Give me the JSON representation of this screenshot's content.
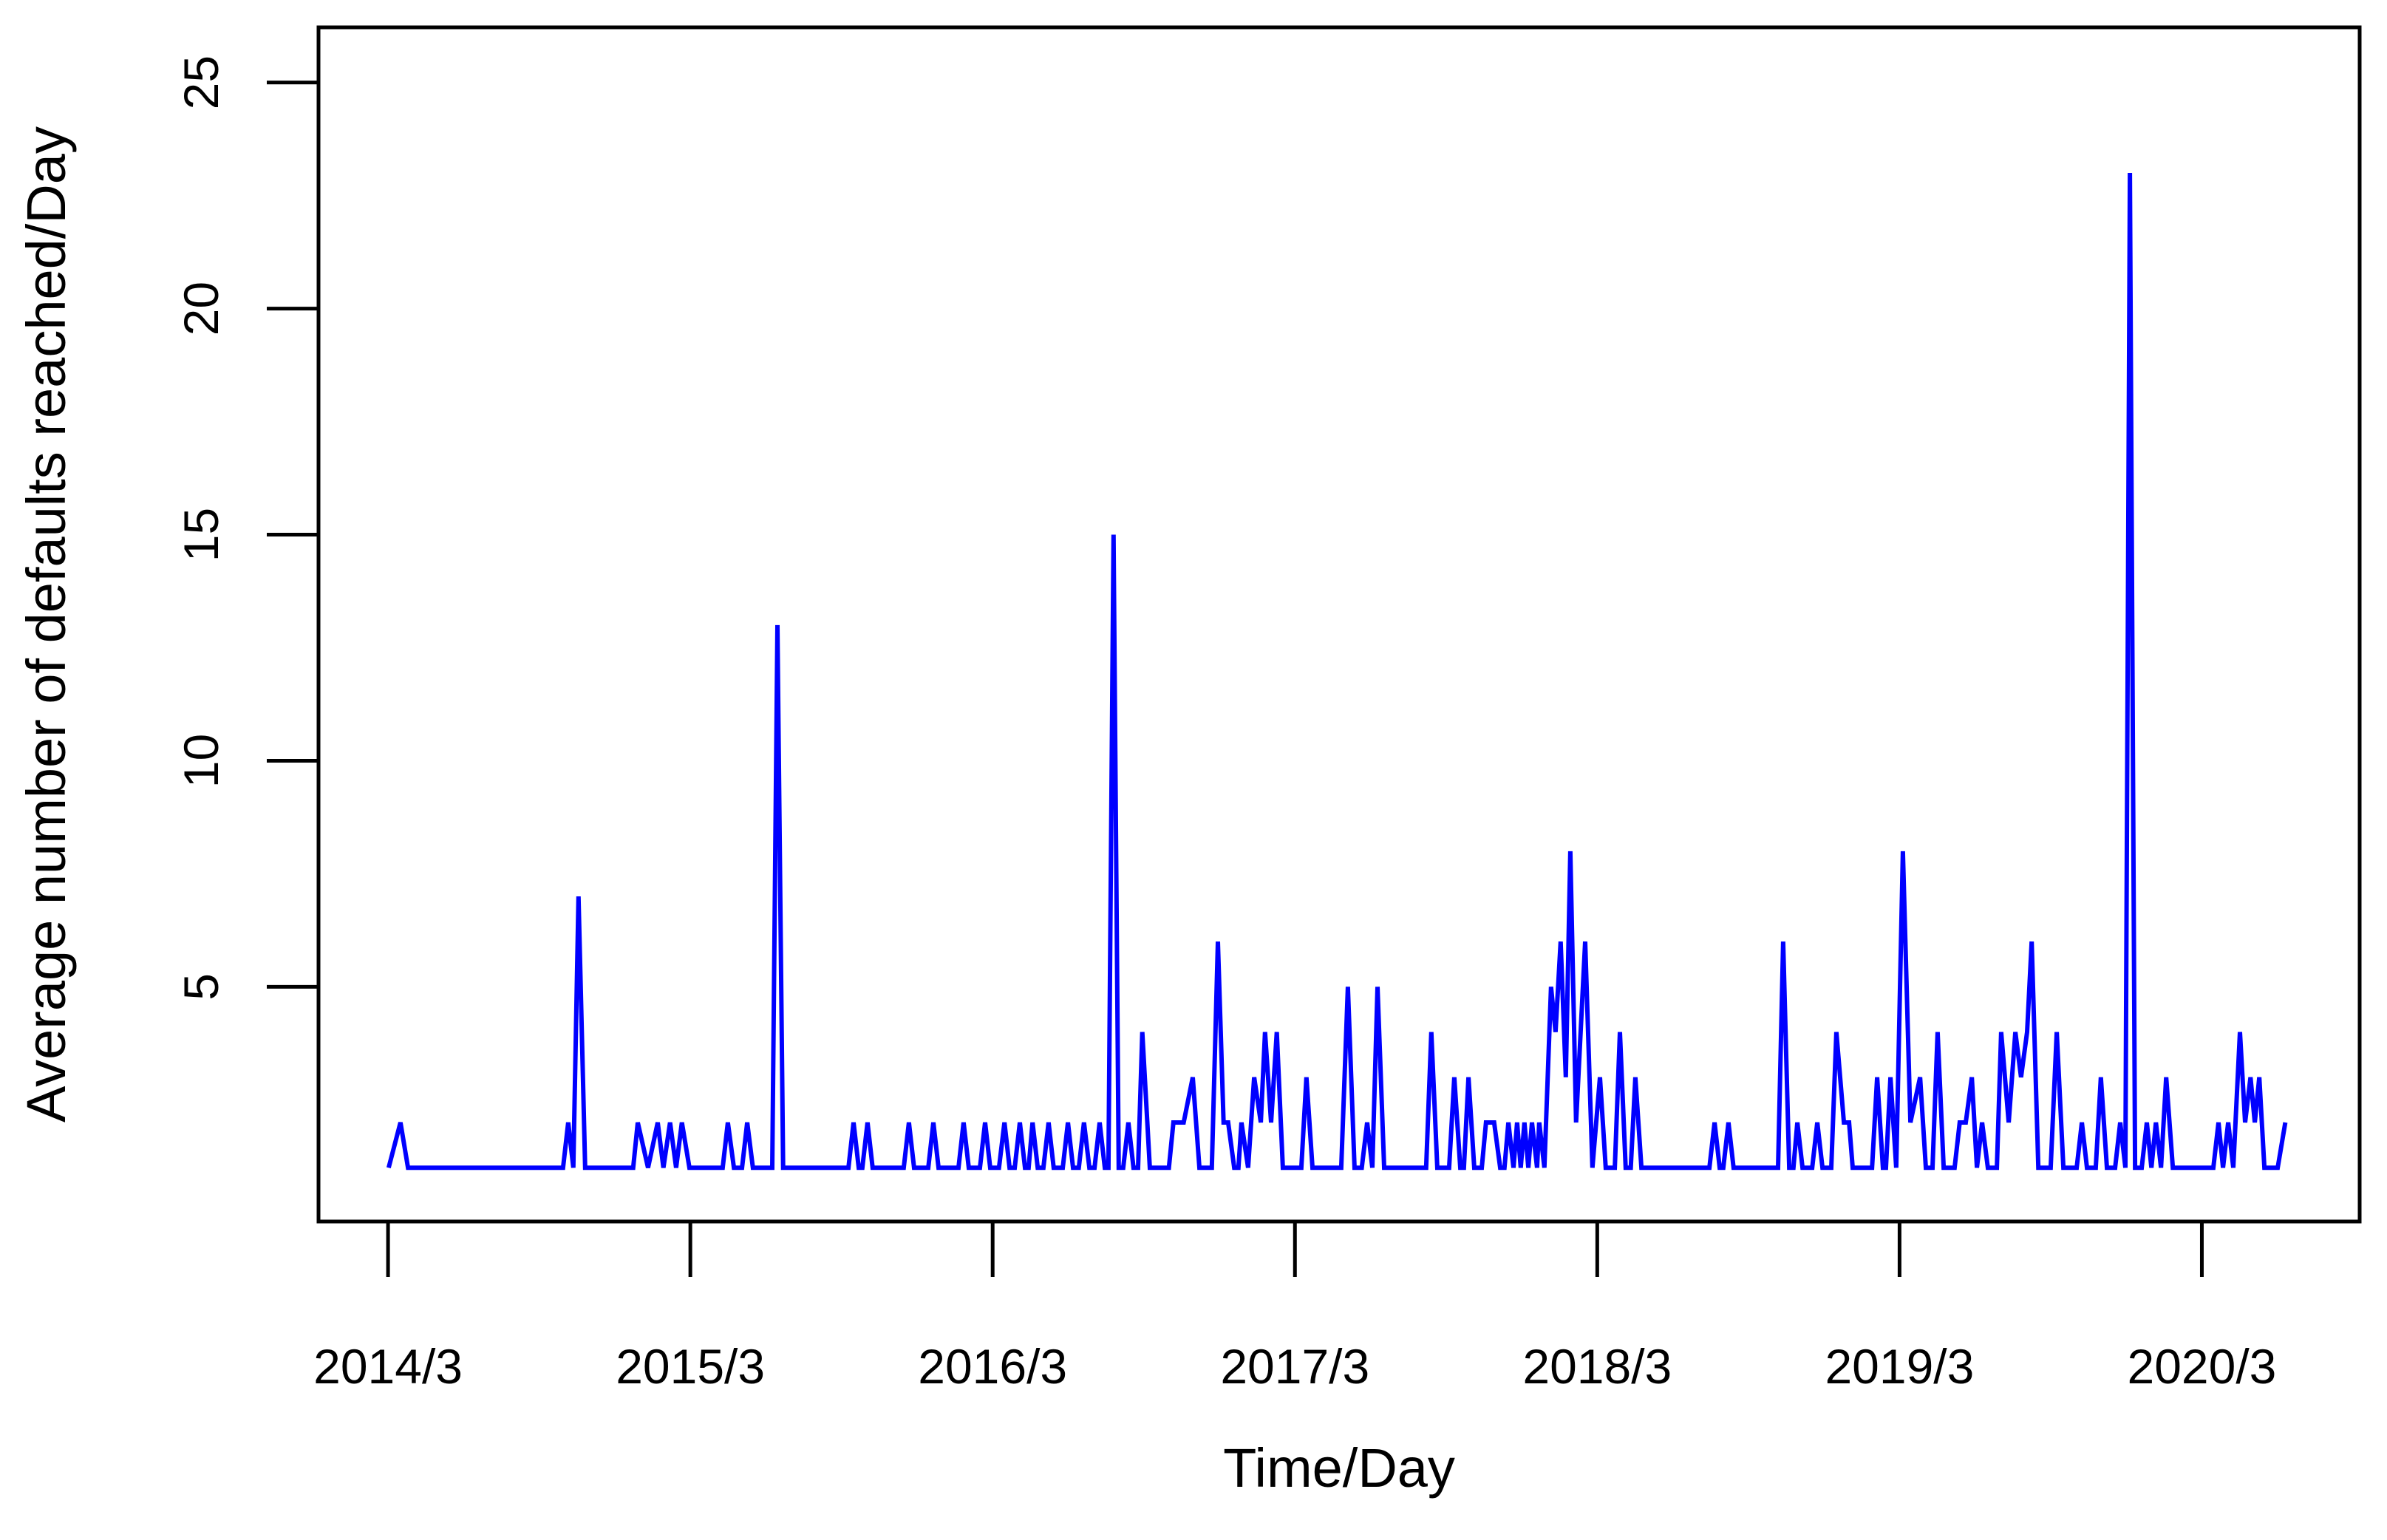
{
  "figure": {
    "background_color": "#FFFFFF",
    "axis_color": "#000000",
    "line_color": "#0000FF"
  },
  "chart_data": {
    "type": "line",
    "title": "",
    "xlabel": "Time/Day",
    "ylabel": "Average number of defaults reached/Day",
    "grid": false,
    "legend": null,
    "x_range": [
      2013.937,
      2020.689
    ],
    "y_range": [
      -0.19,
      26.22
    ],
    "x_ticks": [
      {
        "label": "2014/3",
        "t": 2014.167
      },
      {
        "label": "2015/3",
        "t": 2015.167
      },
      {
        "label": "2016/3",
        "t": 2016.167
      },
      {
        "label": "2017/3",
        "t": 2017.167
      },
      {
        "label": "2018/3",
        "t": 2018.167
      },
      {
        "label": "2019/3",
        "t": 2019.167
      },
      {
        "label": "2020/3",
        "t": 2020.167
      }
    ],
    "y_ticks": [
      5,
      10,
      15,
      20,
      25
    ],
    "points": [
      [
        2014.169,
        1
      ],
      [
        2014.208,
        2
      ],
      [
        2014.233,
        1
      ],
      [
        2014.746,
        1
      ],
      [
        2014.763,
        2
      ],
      [
        2014.78,
        1
      ],
      [
        2014.797,
        7
      ],
      [
        2014.819,
        1
      ],
      [
        2014.978,
        1
      ],
      [
        2014.993,
        2
      ],
      [
        2015.027,
        1
      ],
      [
        2015.059,
        2
      ],
      [
        2015.078,
        1
      ],
      [
        2015.1,
        2
      ],
      [
        2015.12,
        1
      ],
      [
        2015.139,
        2
      ],
      [
        2015.164,
        1
      ],
      [
        2015.274,
        1
      ],
      [
        2015.291,
        2
      ],
      [
        2015.311,
        1
      ],
      [
        2015.338,
        1
      ],
      [
        2015.355,
        2
      ],
      [
        2015.374,
        1
      ],
      [
        2015.438,
        1
      ],
      [
        2015.455,
        13
      ],
      [
        2015.474,
        1
      ],
      [
        2015.69,
        1
      ],
      [
        2015.707,
        2
      ],
      [
        2015.724,
        1
      ],
      [
        2015.736,
        1
      ],
      [
        2015.753,
        2
      ],
      [
        2015.77,
        1
      ],
      [
        2015.873,
        1
      ],
      [
        2015.89,
        2
      ],
      [
        2015.907,
        1
      ],
      [
        2015.954,
        1
      ],
      [
        2015.971,
        2
      ],
      [
        2015.988,
        1
      ],
      [
        2016.054,
        1
      ],
      [
        2016.071,
        2
      ],
      [
        2016.088,
        1
      ],
      [
        2016.125,
        1
      ],
      [
        2016.142,
        2
      ],
      [
        2016.159,
        1
      ],
      [
        2016.188,
        1
      ],
      [
        2016.206,
        2
      ],
      [
        2016.223,
        1
      ],
      [
        2016.24,
        1
      ],
      [
        2016.257,
        2
      ],
      [
        2016.274,
        1
      ],
      [
        2016.286,
        1
      ],
      [
        2016.299,
        2
      ],
      [
        2016.316,
        1
      ],
      [
        2016.335,
        1
      ],
      [
        2016.352,
        2
      ],
      [
        2016.369,
        1
      ],
      [
        2016.399,
        1
      ],
      [
        2016.416,
        2
      ],
      [
        2016.433,
        1
      ],
      [
        2016.452,
        1
      ],
      [
        2016.469,
        2
      ],
      [
        2016.487,
        1
      ],
      [
        2016.504,
        1
      ],
      [
        2016.521,
        2
      ],
      [
        2016.538,
        1
      ],
      [
        2016.55,
        1
      ],
      [
        2016.567,
        15
      ],
      [
        2016.584,
        1
      ],
      [
        2016.599,
        1
      ],
      [
        2016.616,
        2
      ],
      [
        2016.633,
        1
      ],
      [
        2016.648,
        1
      ],
      [
        2016.662,
        4
      ],
      [
        2016.687,
        1
      ],
      [
        2016.75,
        1
      ],
      [
        2016.765,
        2
      ],
      [
        2016.799,
        2
      ],
      [
        2016.829,
        3
      ],
      [
        2016.851,
        1
      ],
      [
        2016.892,
        1
      ],
      [
        2016.912,
        6
      ],
      [
        2016.931,
        2
      ],
      [
        2016.946,
        2
      ],
      [
        2016.966,
        1
      ],
      [
        2016.98,
        1
      ],
      [
        2016.99,
        2
      ],
      [
        2017.012,
        1
      ],
      [
        2017.032,
        3
      ],
      [
        2017.054,
        2
      ],
      [
        2017.068,
        4
      ],
      [
        2017.088,
        2
      ],
      [
        2017.107,
        4
      ],
      [
        2017.127,
        1
      ],
      [
        2017.188,
        1
      ],
      [
        2017.205,
        3
      ],
      [
        2017.225,
        1
      ],
      [
        2017.32,
        1
      ],
      [
        2017.342,
        5
      ],
      [
        2017.364,
        1
      ],
      [
        2017.388,
        1
      ],
      [
        2017.406,
        2
      ],
      [
        2017.423,
        1
      ],
      [
        2017.44,
        5
      ],
      [
        2017.462,
        1
      ],
      [
        2017.601,
        1
      ],
      [
        2017.618,
        4
      ],
      [
        2017.638,
        1
      ],
      [
        2017.677,
        1
      ],
      [
        2017.694,
        3
      ],
      [
        2017.714,
        1
      ],
      [
        2017.726,
        1
      ],
      [
        2017.741,
        3
      ],
      [
        2017.76,
        1
      ],
      [
        2017.785,
        1
      ],
      [
        2017.799,
        2
      ],
      [
        2017.826,
        2
      ],
      [
        2017.846,
        1
      ],
      [
        2017.86,
        1
      ],
      [
        2017.873,
        2
      ],
      [
        2017.89,
        1
      ],
      [
        2017.902,
        2
      ],
      [
        2017.914,
        1
      ],
      [
        2017.926,
        2
      ],
      [
        2017.939,
        1
      ],
      [
        2017.951,
        2
      ],
      [
        2017.968,
        1
      ],
      [
        2017.975,
        2
      ],
      [
        2017.992,
        1
      ],
      [
        2018.014,
        5
      ],
      [
        2018.029,
        4
      ],
      [
        2018.046,
        6
      ],
      [
        2018.063,
        3
      ],
      [
        2018.078,
        8
      ],
      [
        2018.097,
        2
      ],
      [
        2018.127,
        6
      ],
      [
        2018.151,
        1
      ],
      [
        2018.176,
        3
      ],
      [
        2018.195,
        1
      ],
      [
        2018.225,
        1
      ],
      [
        2018.242,
        4
      ],
      [
        2018.261,
        1
      ],
      [
        2018.278,
        1
      ],
      [
        2018.293,
        3
      ],
      [
        2018.313,
        1
      ],
      [
        2018.538,
        1
      ],
      [
        2018.555,
        2
      ],
      [
        2018.572,
        1
      ],
      [
        2018.584,
        1
      ],
      [
        2018.601,
        2
      ],
      [
        2018.618,
        1
      ],
      [
        2018.765,
        1
      ],
      [
        2018.782,
        6
      ],
      [
        2018.802,
        1
      ],
      [
        2018.816,
        1
      ],
      [
        2018.829,
        2
      ],
      [
        2018.846,
        1
      ],
      [
        2018.878,
        1
      ],
      [
        2018.895,
        2
      ],
      [
        2018.912,
        1
      ],
      [
        2018.941,
        1
      ],
      [
        2018.958,
        4
      ],
      [
        2018.983,
        2
      ],
      [
        2019.0,
        2
      ],
      [
        2019.012,
        1
      ],
      [
        2019.076,
        1
      ],
      [
        2019.093,
        3
      ],
      [
        2019.112,
        1
      ],
      [
        2019.122,
        1
      ],
      [
        2019.137,
        3
      ],
      [
        2019.156,
        1
      ],
      [
        2019.178,
        8
      ],
      [
        2019.203,
        2
      ],
      [
        2019.235,
        3
      ],
      [
        2019.254,
        1
      ],
      [
        2019.276,
        1
      ],
      [
        2019.293,
        4
      ],
      [
        2019.313,
        1
      ],
      [
        2019.349,
        1
      ],
      [
        2019.366,
        2
      ],
      [
        2019.386,
        2
      ],
      [
        2019.406,
        3
      ],
      [
        2019.423,
        1
      ],
      [
        2019.44,
        2
      ],
      [
        2019.459,
        1
      ],
      [
        2019.489,
        1
      ],
      [
        2019.503,
        4
      ],
      [
        2019.528,
        2
      ],
      [
        2019.55,
        4
      ],
      [
        2019.569,
        3
      ],
      [
        2019.589,
        4
      ],
      [
        2019.604,
        6
      ],
      [
        2019.626,
        1
      ],
      [
        2019.667,
        1
      ],
      [
        2019.687,
        4
      ],
      [
        2019.709,
        1
      ],
      [
        2019.753,
        1
      ],
      [
        2019.77,
        2
      ],
      [
        2019.787,
        1
      ],
      [
        2019.816,
        1
      ],
      [
        2019.833,
        3
      ],
      [
        2019.853,
        1
      ],
      [
        2019.88,
        1
      ],
      [
        2019.897,
        2
      ],
      [
        2019.914,
        1
      ],
      [
        2019.929,
        23
      ],
      [
        2019.946,
        1
      ],
      [
        2019.968,
        1
      ],
      [
        2019.985,
        2
      ],
      [
        2020.0,
        1
      ],
      [
        2020.015,
        2
      ],
      [
        2020.032,
        1
      ],
      [
        2020.049,
        3
      ],
      [
        2020.071,
        1
      ],
      [
        2020.205,
        1
      ],
      [
        2020.222,
        2
      ],
      [
        2020.237,
        1
      ],
      [
        2020.254,
        2
      ],
      [
        2020.271,
        1
      ],
      [
        2020.293,
        4
      ],
      [
        2020.31,
        2
      ],
      [
        2020.328,
        3
      ],
      [
        2020.342,
        2
      ],
      [
        2020.357,
        3
      ],
      [
        2020.374,
        1
      ],
      [
        2020.418,
        1
      ],
      [
        2020.443,
        2
      ]
    ]
  }
}
